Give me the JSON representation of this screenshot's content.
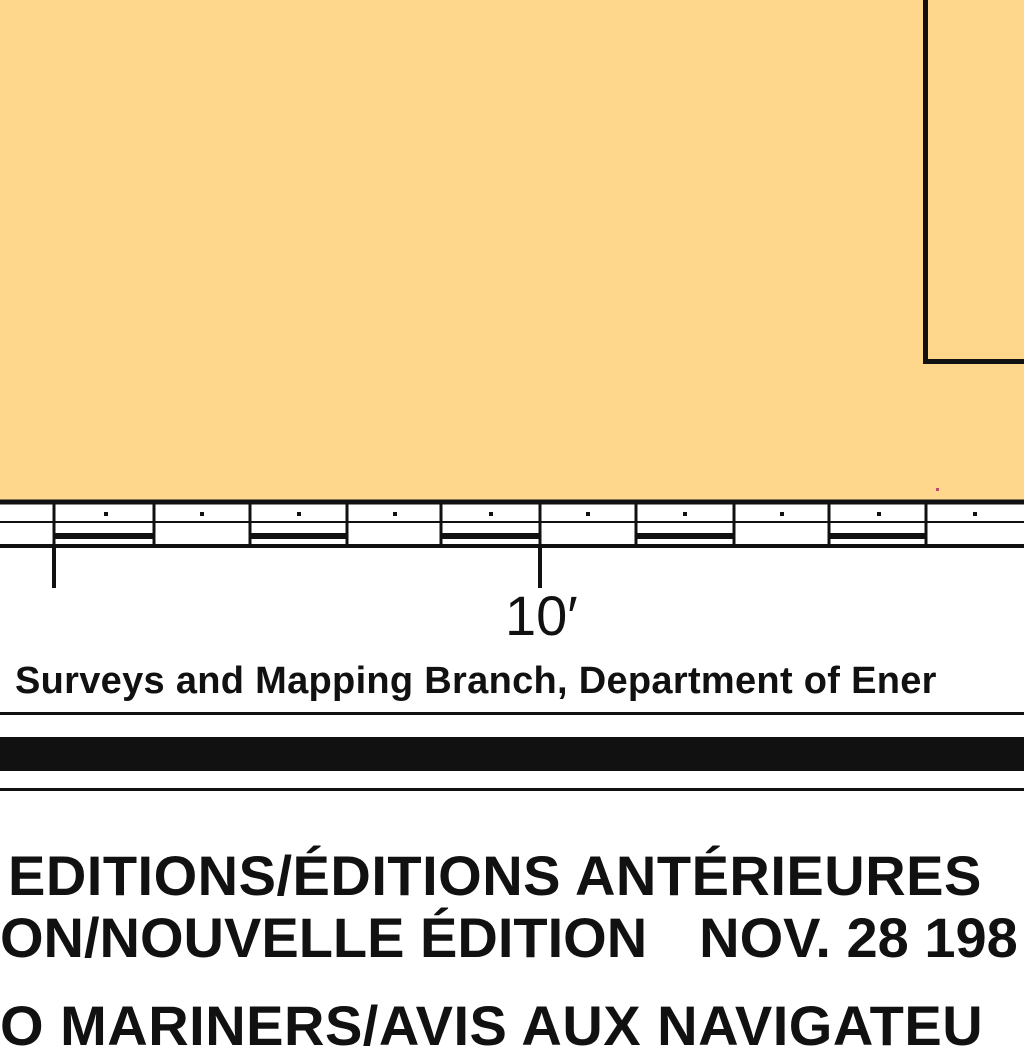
{
  "map": {
    "land_color": "#fed68c",
    "ink_color": "#111111"
  },
  "border": {
    "longitude_label": "10′"
  },
  "credit": {
    "text": "Surveys and Mapping Branch, Department of Ener"
  },
  "editions": {
    "previous": "EDITIONS/ÉDITIONS ANTÉRIEURES",
    "new_label": "ON/NOUVELLE ÉDITION",
    "new_date": "NOV. 28 198"
  },
  "notices": {
    "text": "O MARINERS/AVIS AUX NAVIGATEU"
  }
}
